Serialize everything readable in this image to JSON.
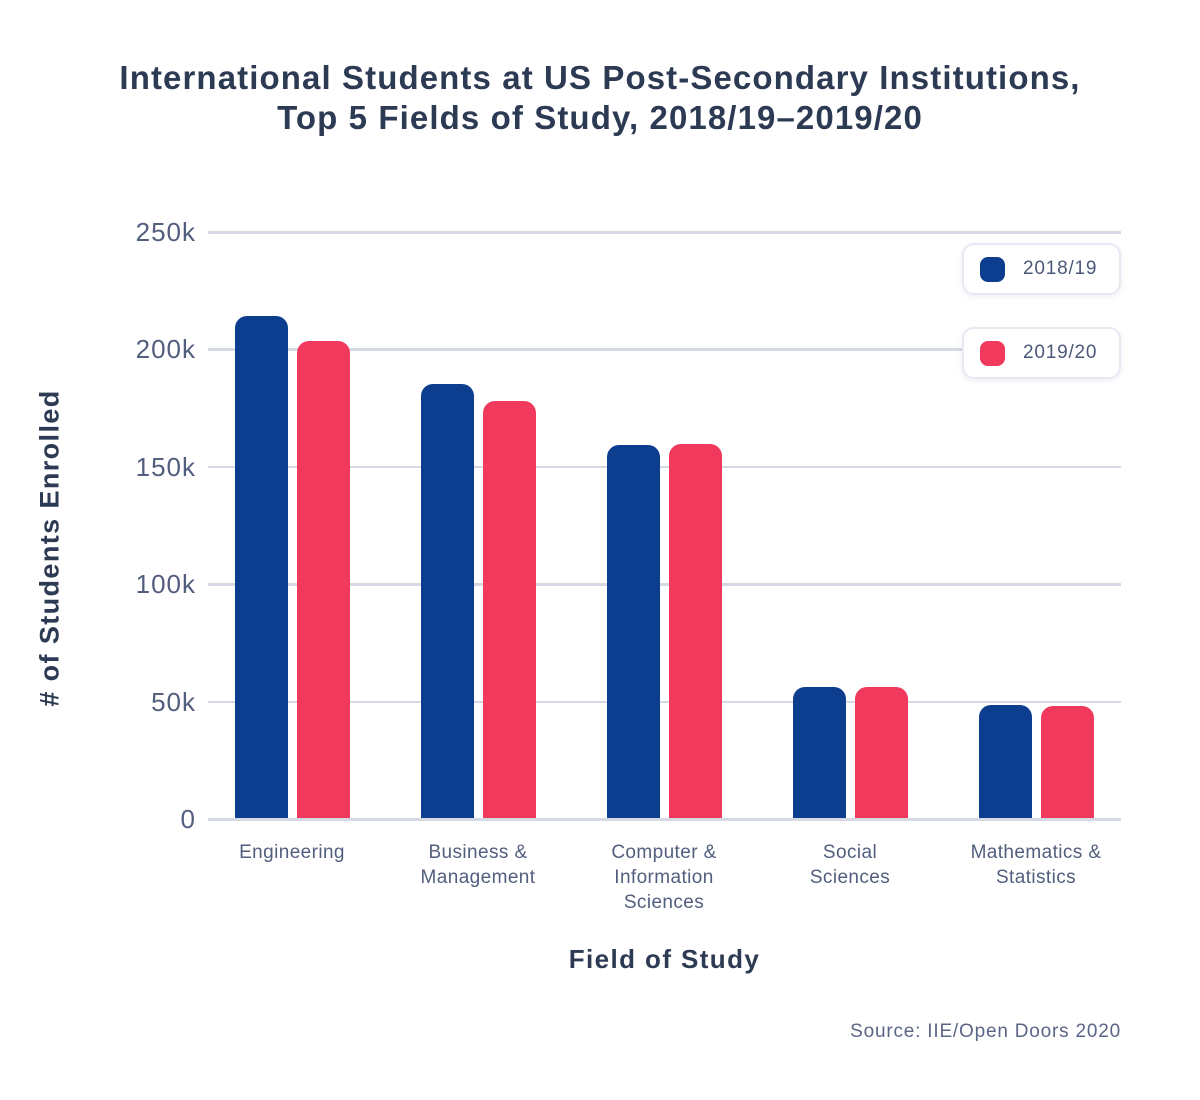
{
  "page": {
    "title_line1": "International Students at US Post-Secondary Institutions,",
    "title_line2": "Top 5 Fields of Study, 2018/19–2019/20",
    "source": "Source: IIE/Open Doors 2020"
  },
  "colors": {
    "series_2018_19": "#0c3d8f",
    "series_2019_20": "#f0395c",
    "gridline": "#d5d9e4",
    "heading_text": "#2d3a53",
    "axis_tick_text": "#525e7e",
    "legend_text": "#4b5878",
    "source_text": "#5b6585",
    "background": "#ffffff"
  },
  "chart_data": {
    "type": "bar",
    "title": "International Students at US Post-Secondary Institutions, Top 5 Fields of Study, 2018/19–2019/20",
    "xlabel": "Field of Study",
    "ylabel": "# of Students Enrolled",
    "ylim": [
      0,
      250000
    ],
    "ytick_values": [
      0,
      50000,
      100000,
      150000,
      200000,
      250000
    ],
    "ytick_labels": [
      "0",
      "50k",
      "100k",
      "150k",
      "200k",
      "250k"
    ],
    "grid": "horizontal gridlines on",
    "legend_position": "top-right",
    "categories": [
      "Engineering",
      "Business &\nManagement",
      "Computer &\nInformation\nSciences",
      "Social\nSciences",
      "Mathematics &\nStatistics"
    ],
    "series": [
      {
        "name": "2018/19",
        "color": "#0c3d8f",
        "values": [
          214000,
          185000,
          158700,
          55600,
          48100
        ]
      },
      {
        "name": "2019/20",
        "color": "#f0395c",
        "values": [
          203000,
          177500,
          159300,
          56000,
          47800
        ]
      }
    ]
  },
  "legend": {
    "items": [
      {
        "label": "2018/19",
        "color": "#0c3d8f"
      },
      {
        "label": "2019/20",
        "color": "#f0395c"
      }
    ]
  }
}
